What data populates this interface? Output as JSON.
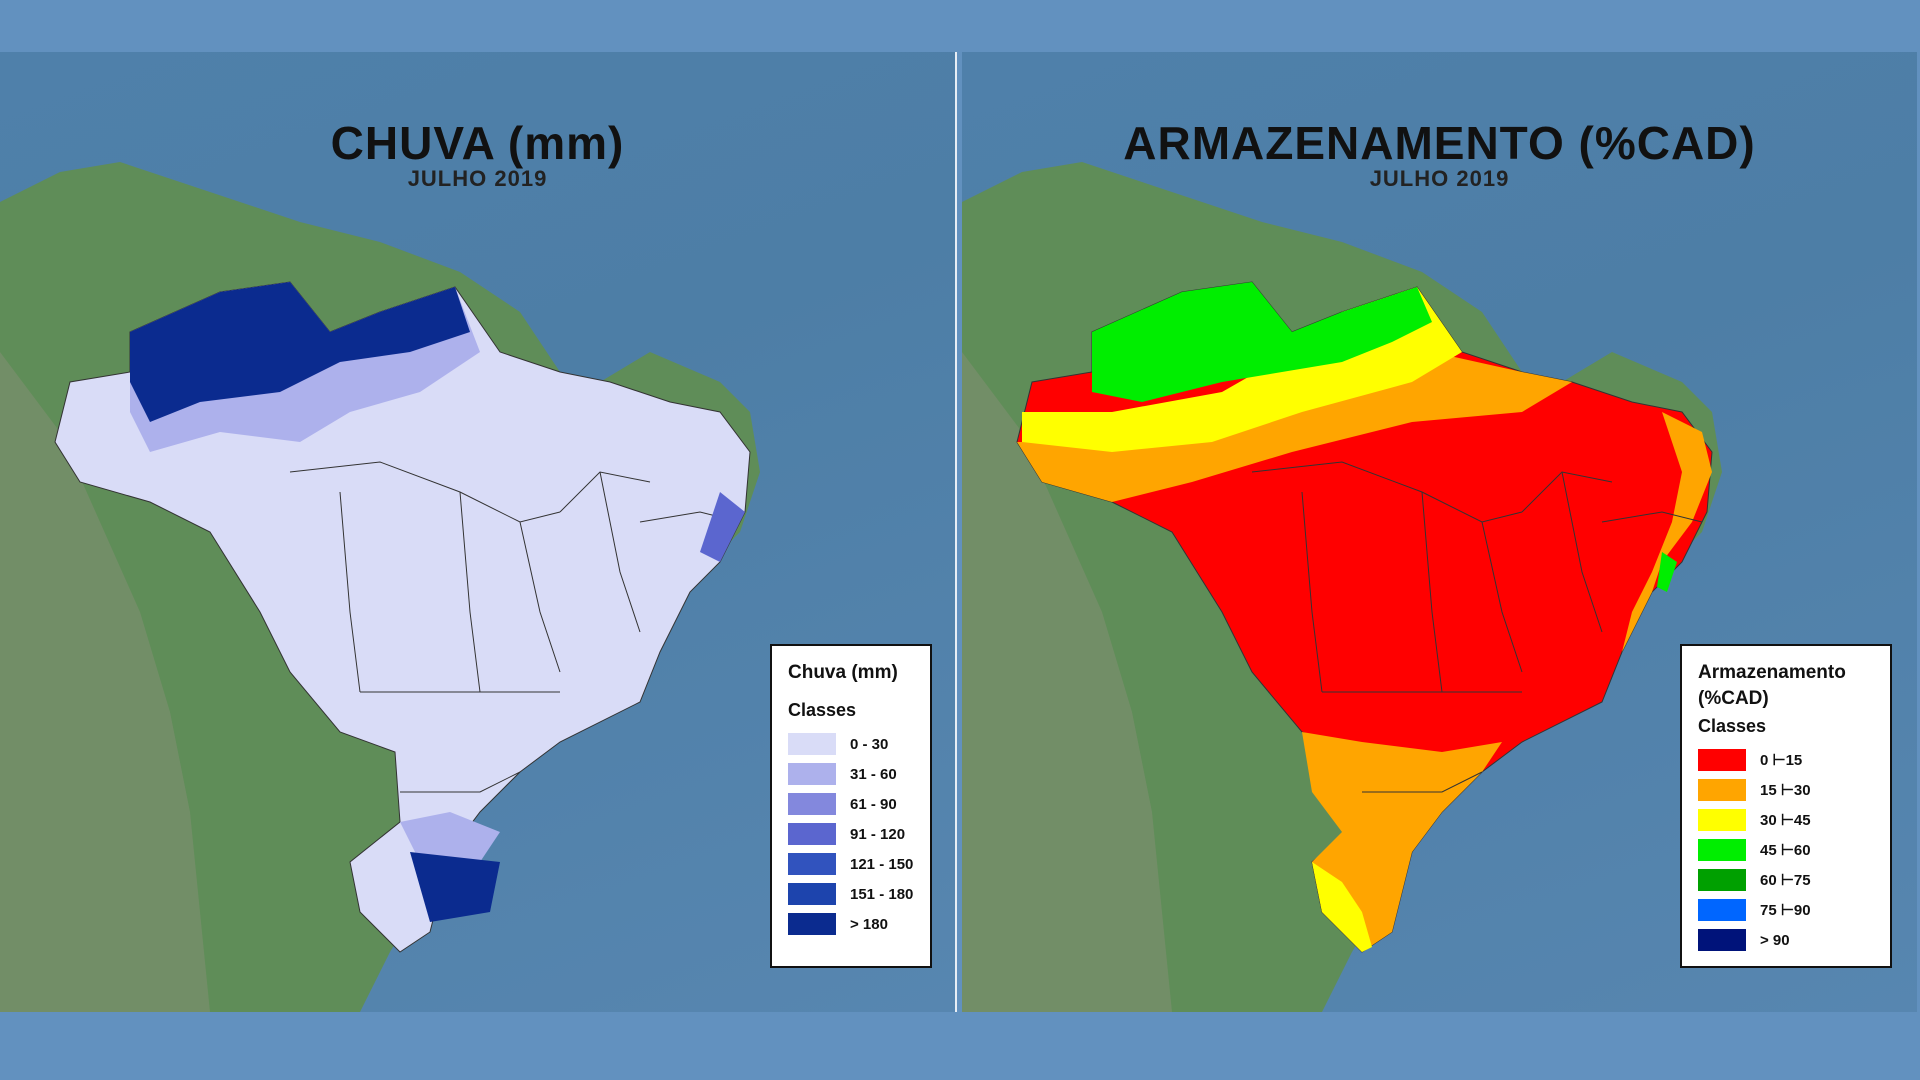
{
  "left": {
    "title": "CHUVA (mm)",
    "subtitle": "JULHO 2019",
    "legend": {
      "title": "Chuva (mm)",
      "subtitle": "Classes",
      "classes": [
        {
          "label": "0 - 30",
          "color": "#d9dcf7"
        },
        {
          "label": "31 - 60",
          "color": "#adb1ec"
        },
        {
          "label": "61 - 90",
          "color": "#8388dd"
        },
        {
          "label": "91 - 120",
          "color": "#5b66cf"
        },
        {
          "label": "121 - 150",
          "color": "#3153be"
        },
        {
          "label": "151 - 180",
          "color": "#1d44ad"
        },
        {
          "label": "> 180",
          "color": "#0b2b8f"
        }
      ]
    }
  },
  "right": {
    "title": "ARMAZENAMENTO (%CAD)",
    "subtitle": "JULHO 2019",
    "legend": {
      "title_line1": "Armazenamento",
      "title_line2": "(%CAD)",
      "subtitle": "Classes",
      "classes": [
        {
          "label": "0 ⊢15",
          "color": "#ff0000"
        },
        {
          "label": "15 ⊢30",
          "color": "#ffa500"
        },
        {
          "label": "30 ⊢45",
          "color": "#ffff00"
        },
        {
          "label": "45 ⊢60",
          "color": "#00ee00"
        },
        {
          "label": "60 ⊢75",
          "color": "#00a000"
        },
        {
          "label": "75 ⊢90",
          "color": "#0066ff"
        },
        {
          "label": "> 90",
          "color": "#00137a"
        }
      ]
    }
  },
  "colors": {
    "background": "#6291bf",
    "ocean": "#4f80aa",
    "land": "#5c8a55"
  }
}
